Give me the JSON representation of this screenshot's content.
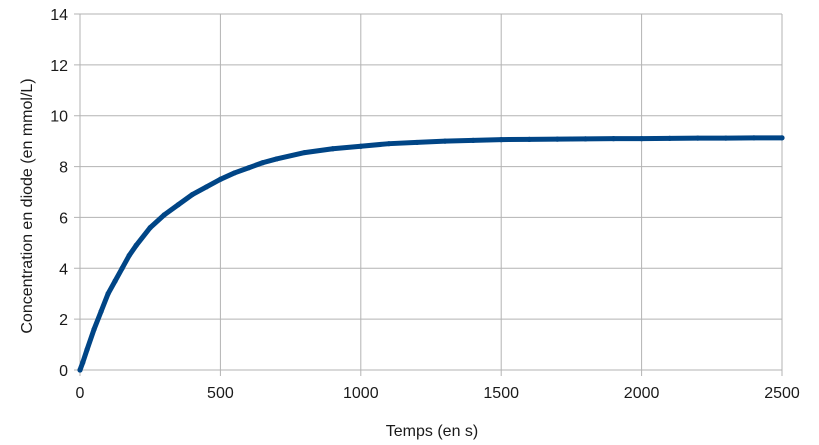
{
  "chart_data": {
    "type": "line",
    "xlabel": "Temps (en s)",
    "ylabel": "Concentration en diode (en mmol/L)",
    "xlim": [
      0,
      2500
    ],
    "ylim": [
      0,
      14
    ],
    "x_ticks": [
      0,
      500,
      1000,
      1500,
      2000,
      2500
    ],
    "y_ticks": [
      0,
      2,
      4,
      6,
      8,
      10,
      12,
      14
    ],
    "grid": true,
    "legend": "none",
    "series": [
      {
        "color": "#004586",
        "x": [
          0,
          10,
          25,
          50,
          75,
          100,
          125,
          150,
          175,
          200,
          250,
          300,
          350,
          400,
          450,
          500,
          550,
          600,
          650,
          700,
          800,
          900,
          1000,
          1100,
          1200,
          1300,
          1400,
          1500,
          1600,
          1700,
          1800,
          1900,
          2000,
          2100,
          2200,
          2300,
          2400,
          2500
        ],
        "y": [
          0,
          0.3,
          0.8,
          1.6,
          2.3,
          3.0,
          3.5,
          4.0,
          4.5,
          4.9,
          5.6,
          6.1,
          6.5,
          6.9,
          7.2,
          7.5,
          7.75,
          7.95,
          8.15,
          8.3,
          8.55,
          8.7,
          8.8,
          8.9,
          8.95,
          9.0,
          9.03,
          9.06,
          9.07,
          9.08,
          9.09,
          9.1,
          9.1,
          9.11,
          9.12,
          9.12,
          9.13,
          9.13
        ]
      }
    ]
  }
}
